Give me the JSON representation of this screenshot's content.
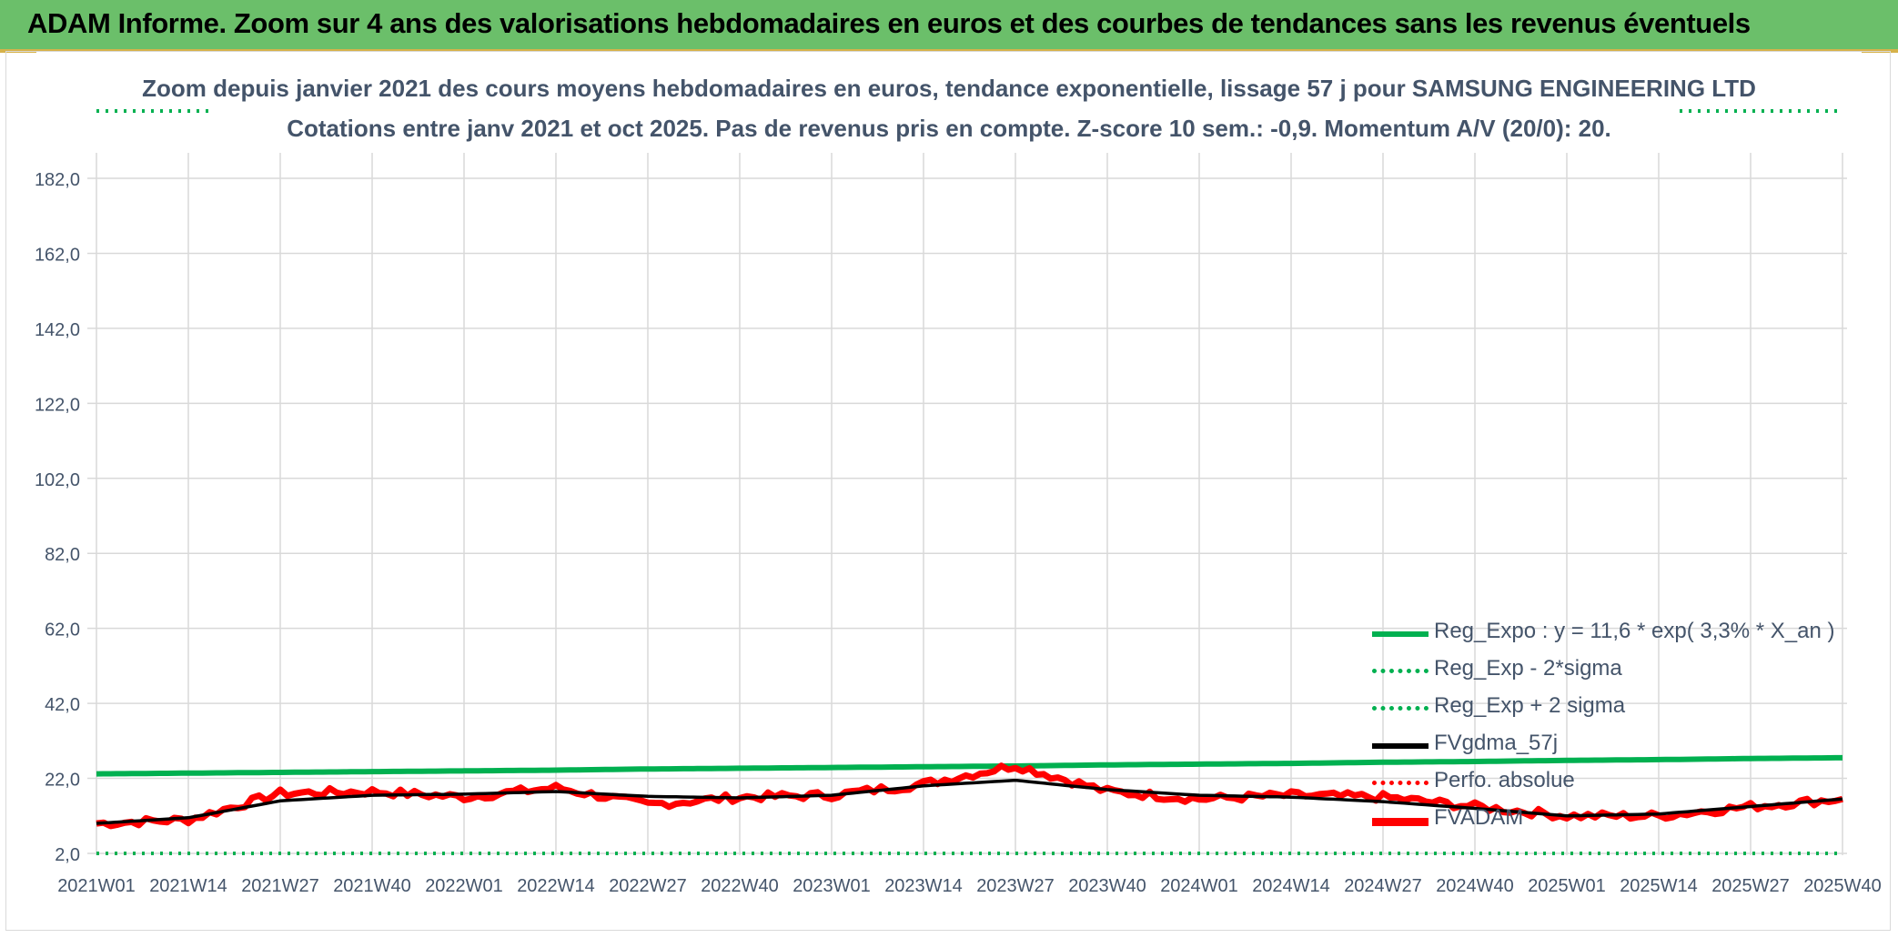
{
  "banner": {
    "title": "ADAM Informe. Zoom sur 4 ans des valorisations hebdomadaires en euros et des courbes de tendances sans les revenus éventuels"
  },
  "colors": {
    "banner_bg": "#6bbf6a",
    "reg_expo": "#00b050",
    "price": "#ff0000",
    "gdma": "#000000",
    "text": "#44546a",
    "grid": "#d9d9d9"
  },
  "chart_data": {
    "type": "line",
    "title": "Zoom depuis janvier 2021 des cours moyens hebdomadaires en euros, tendance exponentielle, lissage 57 j pour SAMSUNG ENGINEERING LTD",
    "subtitle": "Cotations entre janv 2021 et oct 2025. Pas de revenus pris en compte. Z-score 10 sem.: -0,9. Momentum A/V (20/0): 20.",
    "xlabel": "",
    "ylabel": "",
    "x_ticks": [
      "2021W01",
      "2021W14",
      "2021W27",
      "2021W40",
      "2022W01",
      "2022W14",
      "2022W27",
      "2022W40",
      "2023W01",
      "2023W14",
      "2023W27",
      "2023W40",
      "2024W01",
      "2024W14",
      "2024W27",
      "2024W40",
      "2025W01",
      "2025W14",
      "2025W27",
      "2025W40"
    ],
    "y_ticks": [
      "2,0",
      "22,0",
      "42,0",
      "62,0",
      "82,0",
      "102,0",
      "122,0",
      "142,0",
      "162,0",
      "182,0"
    ],
    "ylim": [
      2,
      182
    ],
    "grid": true,
    "legend_position": "bottom-right",
    "series": [
      {
        "name": "Reg_Expo : y = 11,6 * exp( 3,3% *  X_an )",
        "style": "solid",
        "color": "#00b050",
        "values": [
          23.2,
          23.4,
          23.6,
          23.8,
          24.0,
          24.2,
          24.5,
          24.7,
          24.9,
          25.1,
          25.3,
          25.6,
          25.8,
          26.0,
          26.3,
          26.5,
          26.8,
          27.0,
          27.3,
          27.5
        ]
      },
      {
        "name": "Reg_Exp - 2*sigma",
        "style": "dotted",
        "color": "#00b050",
        "values": [
          2.0,
          2.0,
          2.0,
          2.0,
          2.0,
          2.0,
          2.0,
          2.0,
          2.0,
          2.0,
          2.0,
          2.0,
          2.0,
          2.0,
          2.0,
          2.0,
          2.0,
          2.0,
          2.0,
          2.0
        ]
      },
      {
        "name": "Reg_Exp + 2 sigma",
        "style": "dotted",
        "color": "#00b050",
        "values": [
          196,
          196,
          196,
          196,
          196,
          196,
          196,
          196,
          196,
          196,
          196,
          196,
          196,
          196,
          196,
          196,
          196,
          196,
          196,
          196
        ]
      },
      {
        "name": "FVgdma_57j",
        "style": "solid",
        "color": "#000000",
        "values": [
          10.0,
          11.5,
          16.0,
          17.5,
          17.8,
          18.5,
          17.2,
          16.8,
          17.5,
          20.0,
          21.5,
          19.0,
          17.5,
          17.0,
          15.8,
          14.0,
          12.0,
          12.5,
          14.5,
          16.5
        ]
      },
      {
        "name": "Perfo. absolue",
        "style": "dotted",
        "color": "#ff0000",
        "values": []
      },
      {
        "name": "FVADAM",
        "style": "thick",
        "color": "#ff0000",
        "values": [
          10.0,
          11.0,
          18.0,
          18.5,
          17.0,
          19.5,
          15.0,
          17.0,
          17.5,
          20.5,
          25.5,
          18.5,
          16.5,
          17.5,
          17.0,
          14.5,
          12.0,
          12.0,
          14.5,
          16.5
        ]
      }
    ]
  }
}
